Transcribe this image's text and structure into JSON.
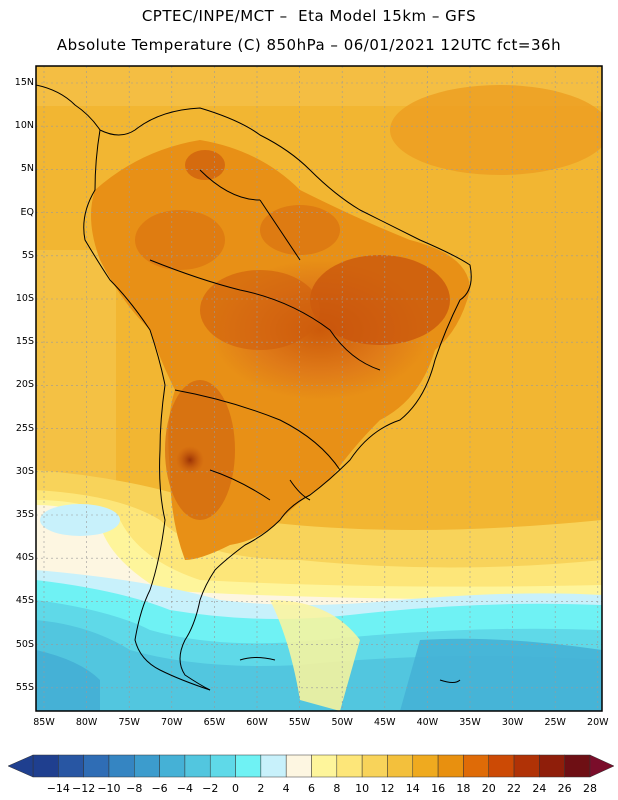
{
  "title": {
    "line1": "CPTEC/INPE/MCT –  Eta Model 15km – GFS",
    "line2": "Absolute Temperature (C) 850hPa – 06/01/2021 12UTC fct=36h"
  },
  "map": {
    "region": "South America",
    "variable": "Absolute Temperature",
    "units": "C",
    "level": "850hPa",
    "lat_labels": [
      "15N",
      "10N",
      "5N",
      "EQ",
      "5S",
      "10S",
      "15S",
      "20S",
      "25S",
      "30S",
      "35S",
      "40S",
      "45S",
      "50S",
      "55S"
    ],
    "lon_labels": [
      "85W",
      "80W",
      "75W",
      "70W",
      "65W",
      "60W",
      "55W",
      "50W",
      "45W",
      "40W",
      "35W",
      "30W",
      "25W",
      "20W"
    ]
  },
  "colorbar": {
    "labels": [
      "-14",
      "-12",
      "-10",
      "-8",
      "-6",
      "-4",
      "-2",
      "0",
      "2",
      "4",
      "6",
      "8",
      "10",
      "12",
      "14",
      "16",
      "18",
      "20",
      "22",
      "24",
      "26",
      "28"
    ],
    "colors": [
      "#1f3f8f",
      "#2856a3",
      "#2f6db5",
      "#3585c2",
      "#3c9ccd",
      "#45b1d6",
      "#52c6df",
      "#5fd9e8",
      "#6ff2f4",
      "#c8f1fb",
      "#fdf6e1",
      "#fef59b",
      "#fde679",
      "#f8d35a",
      "#f3c03c",
      "#efaa1f",
      "#e8900f",
      "#df6b07",
      "#cc4a05",
      "#b03206",
      "#8f1e0a",
      "#6e0f14"
    ],
    "under_color": "#1f3f8f",
    "over_color": "#7a0d2a"
  }
}
